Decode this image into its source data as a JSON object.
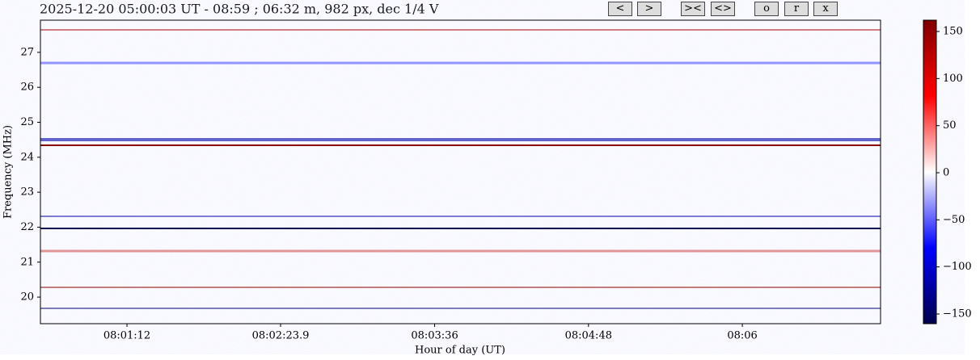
{
  "header": {
    "title": "2025-12-20 05:00:03 UT - 08:59 ; 06:32 m, 982 px, dec 1/4 V"
  },
  "buttons": [
    "<",
    ">",
    "><",
    "<>",
    "o",
    "r",
    "x"
  ],
  "chart_data": {
    "type": "heatmap",
    "xlabel": "Hour of day (UT)",
    "ylabel": "Frequency (MHz)",
    "xlim": [
      8.00875,
      8.11797
    ],
    "xticks": [
      {
        "value": 8.02,
        "label": "08:01:12"
      },
      {
        "value": 8.039972,
        "label": "08:02:23.9"
      },
      {
        "value": 8.06,
        "label": "08:03:36"
      },
      {
        "value": 8.08,
        "label": "08:04:48"
      },
      {
        "value": 8.1,
        "label": "08:06"
      }
    ],
    "ylim": [
      19.24,
      27.92
    ],
    "yticks": [
      20,
      21,
      22,
      23,
      24,
      25,
      26,
      27
    ],
    "colormap": "seismic",
    "colorbar": {
      "lim": [
        -160.3,
        162
      ],
      "ticks": [
        {
          "value": -150,
          "label": "−150"
        },
        {
          "value": -100,
          "label": "−100"
        },
        {
          "value": -50,
          "label": "−50"
        },
        0,
        50,
        100,
        150
      ]
    }
  }
}
